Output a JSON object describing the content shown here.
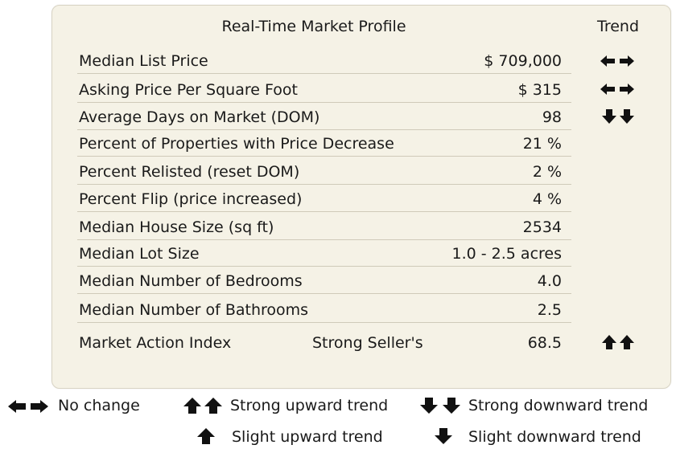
{
  "profile": {
    "title": "Real-Time Market Profile",
    "trend_header": "Trend",
    "rows": [
      {
        "label": "Median List Price",
        "mid": "",
        "value": "$ 709,000",
        "trend": "no-change"
      },
      {
        "label": "Asking Price Per Square Foot",
        "mid": "",
        "value": "$ 315",
        "trend": "no-change"
      },
      {
        "label": "Average Days on Market (DOM)",
        "mid": "",
        "value": "98",
        "trend": "strong-down"
      },
      {
        "label": "Percent of Properties with Price Decrease",
        "mid": "",
        "value": "21 %",
        "trend": ""
      },
      {
        "label": "Percent Relisted (reset DOM)",
        "mid": "",
        "value": "2 %",
        "trend": ""
      },
      {
        "label": "Percent Flip (price increased)",
        "mid": "",
        "value": "4 %",
        "trend": ""
      },
      {
        "label": "Median House Size (sq ft)",
        "mid": "",
        "value": "2534",
        "trend": ""
      },
      {
        "label": "Median Lot Size",
        "mid": "",
        "value": "1.0 - 2.5 acres",
        "trend": ""
      },
      {
        "label": "Median Number of Bedrooms",
        "mid": "",
        "value": "4.0",
        "trend": ""
      },
      {
        "label": "Median Number of Bathrooms",
        "mid": "",
        "value": "2.5",
        "trend": ""
      },
      {
        "label": "Market Action Index",
        "mid": "Strong Seller's",
        "value": "68.5",
        "trend": "strong-up"
      }
    ]
  },
  "legend": {
    "no_change": "No change",
    "strong_up": "Strong upward trend",
    "strong_down": "Strong downward trend",
    "slight_up": "Slight upward trend",
    "slight_down": "Slight downward trend"
  },
  "icons": {
    "no_change": "double-horizontal-arrow-icon",
    "strong_up": "double-up-arrow-icon",
    "strong_down": "double-down-arrow-icon",
    "slight_up": "up-arrow-icon",
    "slight_down": "down-arrow-icon"
  },
  "colors": {
    "panel": "#f5f2e6",
    "arrow": "#111111",
    "divider": "#cfcab9"
  }
}
